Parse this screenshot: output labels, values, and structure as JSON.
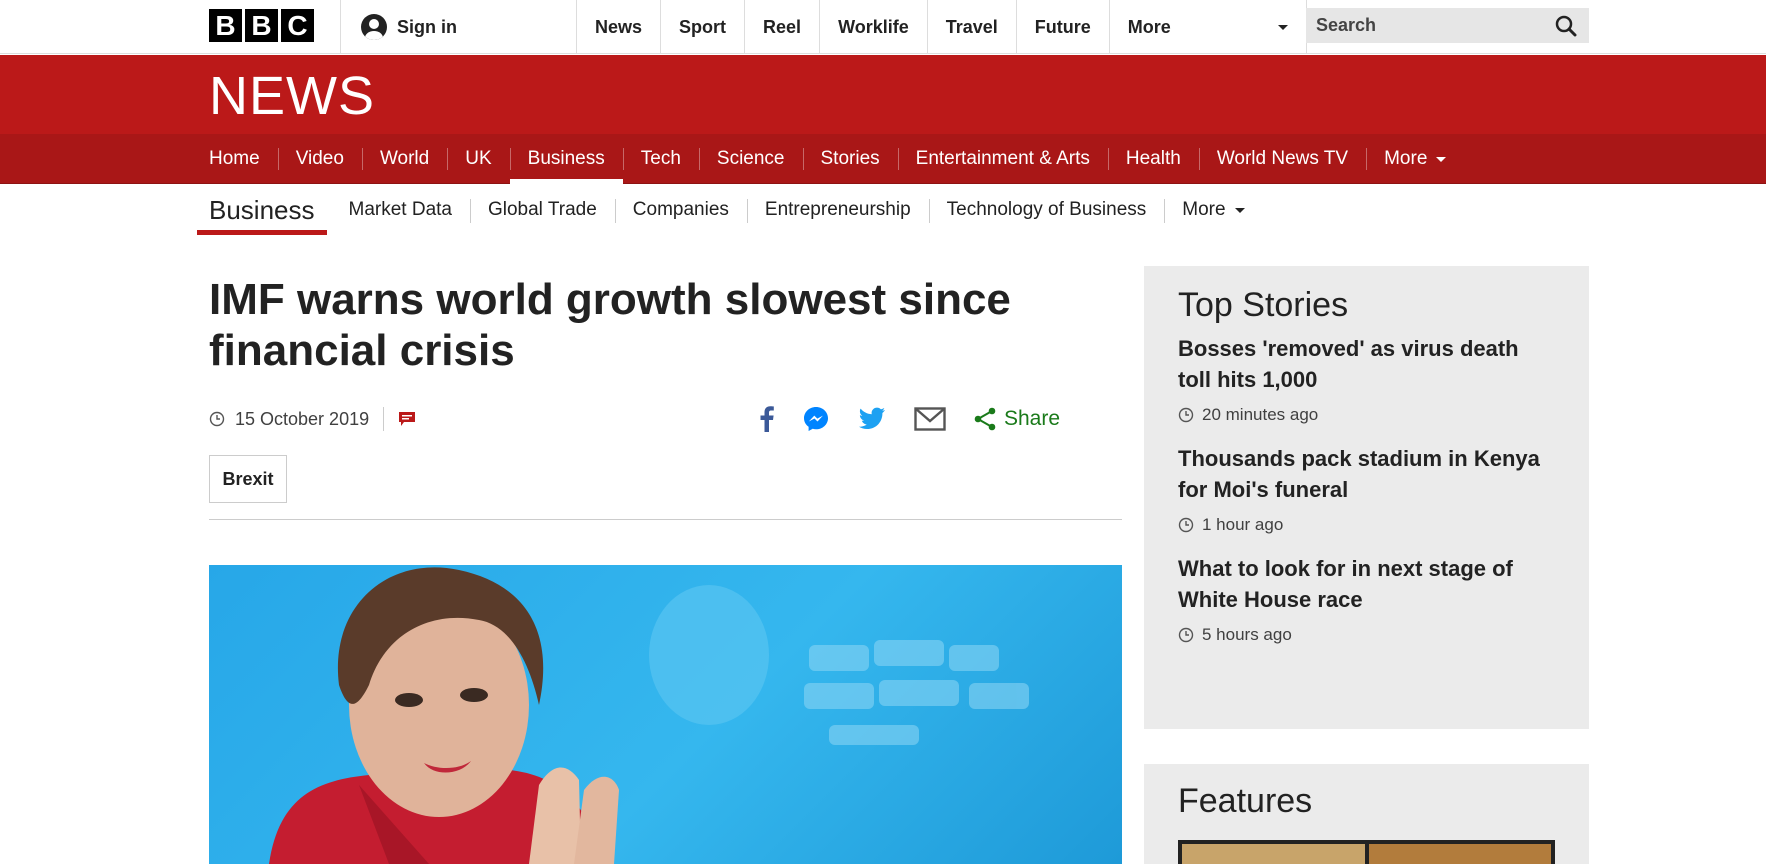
{
  "topbar": {
    "logo_letters": [
      "B",
      "B",
      "C"
    ],
    "signin_label": "Sign in",
    "nav": [
      "News",
      "Sport",
      "Reel",
      "Worklife",
      "Travel",
      "Future"
    ],
    "more_label": "More",
    "search_placeholder": "Search"
  },
  "newsbar": {
    "logo_text": "NEWS",
    "nav": [
      "Home",
      "Video",
      "World",
      "UK",
      "Business",
      "Tech",
      "Science",
      "Stories",
      "Entertainment & Arts",
      "Health",
      "World News TV"
    ],
    "active": "Business",
    "more_label": "More"
  },
  "subnav": {
    "section": "Business",
    "items": [
      "Market Data",
      "Global Trade",
      "Companies",
      "Entrepreneurship",
      "Technology of Business"
    ],
    "more_label": "More"
  },
  "article": {
    "headline": "IMF warns world growth slowest since financial crisis",
    "date": "15 October 2019",
    "share_label": "Share",
    "tag": "Brexit"
  },
  "top_stories": {
    "heading": "Top Stories",
    "items": [
      {
        "title": "Bosses 'removed' as virus death toll hits 1,000",
        "time": "20 minutes ago"
      },
      {
        "title": "Thousands pack stadium in Kenya for Moi's funeral",
        "time": "1 hour ago"
      },
      {
        "title": "What to look for in next stage of White House race",
        "time": "5 hours ago"
      }
    ]
  },
  "features": {
    "heading": "Features"
  },
  "colors": {
    "bbc_red": "#bb1919",
    "nav_red": "#a91717",
    "share_green": "#1a7a1a"
  }
}
